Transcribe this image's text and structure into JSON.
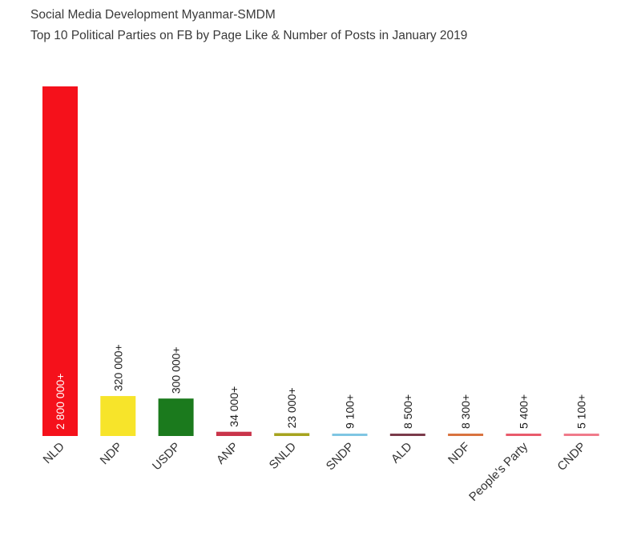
{
  "header": {
    "line1": "Social Media Development Myanmar-SMDM",
    "line2": "Top 10 Political Parties on FB by Page Like & Number of Posts in January 2019"
  },
  "chart_data": {
    "type": "bar",
    "categories": [
      "NLD",
      "NDP",
      "USDP",
      "ANP",
      "SNLD",
      "SNDP",
      "ALD",
      "NDF",
      "People's Party",
      "CNDP"
    ],
    "values": [
      2800000,
      320000,
      300000,
      34000,
      23000,
      9100,
      8500,
      8300,
      5400,
      5100
    ],
    "value_labels": [
      "2 800 000+",
      "320 000+",
      "300 000+",
      "34 000+",
      "23 000+",
      "9 100+",
      "8 500+",
      "8 300+",
      "5 400+",
      "5 100+"
    ],
    "colors": [
      "#f5111b",
      "#f7e42a",
      "#1b7a1d",
      "#c9344a",
      "#a6a31e",
      "#7fc6e3",
      "#7a3a4a",
      "#d9733f",
      "#e85a6b",
      "#f07a8a"
    ],
    "ylim": [
      0,
      2800000
    ],
    "grid": false,
    "legend": "none"
  }
}
